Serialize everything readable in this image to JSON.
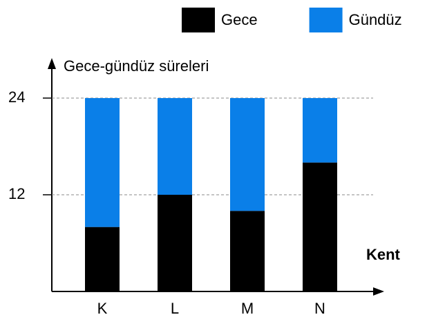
{
  "chart_data": {
    "type": "stacked_bar",
    "y_label": "Gece-gündüz süreleri",
    "x_label": "Kent",
    "categories": [
      "K",
      "L",
      "M",
      "N"
    ],
    "series": [
      {
        "name": "Gece",
        "color": "#000000",
        "values": [
          8,
          12,
          10,
          16
        ]
      },
      {
        "name": "Gündüz",
        "color": "#0a7fe8",
        "values": [
          16,
          12,
          14,
          8
        ]
      }
    ],
    "ylim": [
      0,
      24
    ],
    "yticks": [
      12,
      24
    ],
    "grid": true,
    "legend": "top-right"
  }
}
